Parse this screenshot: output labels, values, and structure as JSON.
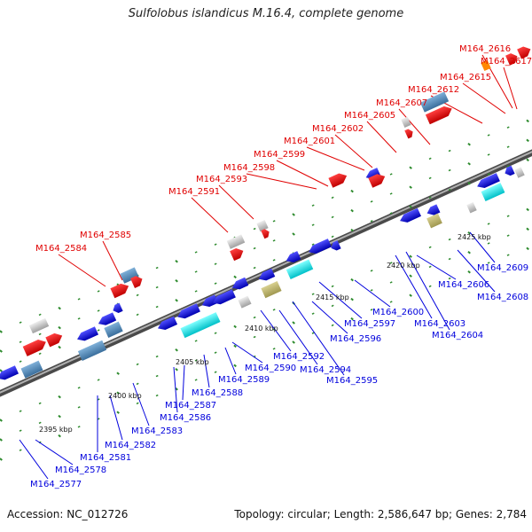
{
  "title": "Sulfolobus islandicus M.16.4, complete genome",
  "footer": {
    "accession": "Accession: NC_012726",
    "topology": "Topology: circular; Length: 2,586,647 bp; Genes: 2,784"
  },
  "colors": {
    "forward_label": "#e00000",
    "reverse_label": "#0000dd",
    "backbone": "#808080",
    "tick": "#2e8b2e"
  },
  "kbp_marks": [
    "2395 kbp",
    "2400 kbp",
    "2405 kbp",
    "2410 kbp",
    "2415 kbp",
    "2420 kbp",
    "2425 kbp"
  ],
  "forward_labels": [
    "M164_2584",
    "M164_2585",
    "M164_2591",
    "M164_2593",
    "M164_2598",
    "M164_2599",
    "M164_2601",
    "M164_2602",
    "M164_2605",
    "M164_2607",
    "M164_2612",
    "M164_2615",
    "M164_2616",
    "M164_2617"
  ],
  "reverse_labels": [
    "M164_2577",
    "M164_2578",
    "M164_2581",
    "M164_2582",
    "M164_2583",
    "M164_2586",
    "M164_2587",
    "M164_2588",
    "M164_2589",
    "M164_2590",
    "M164_2592",
    "M164_2594",
    "M164_2595",
    "M164_2596",
    "M164_2597",
    "M164_2600",
    "M164_2603",
    "M164_2604",
    "M164_2606",
    "M164_2608",
    "M164_2609"
  ]
}
